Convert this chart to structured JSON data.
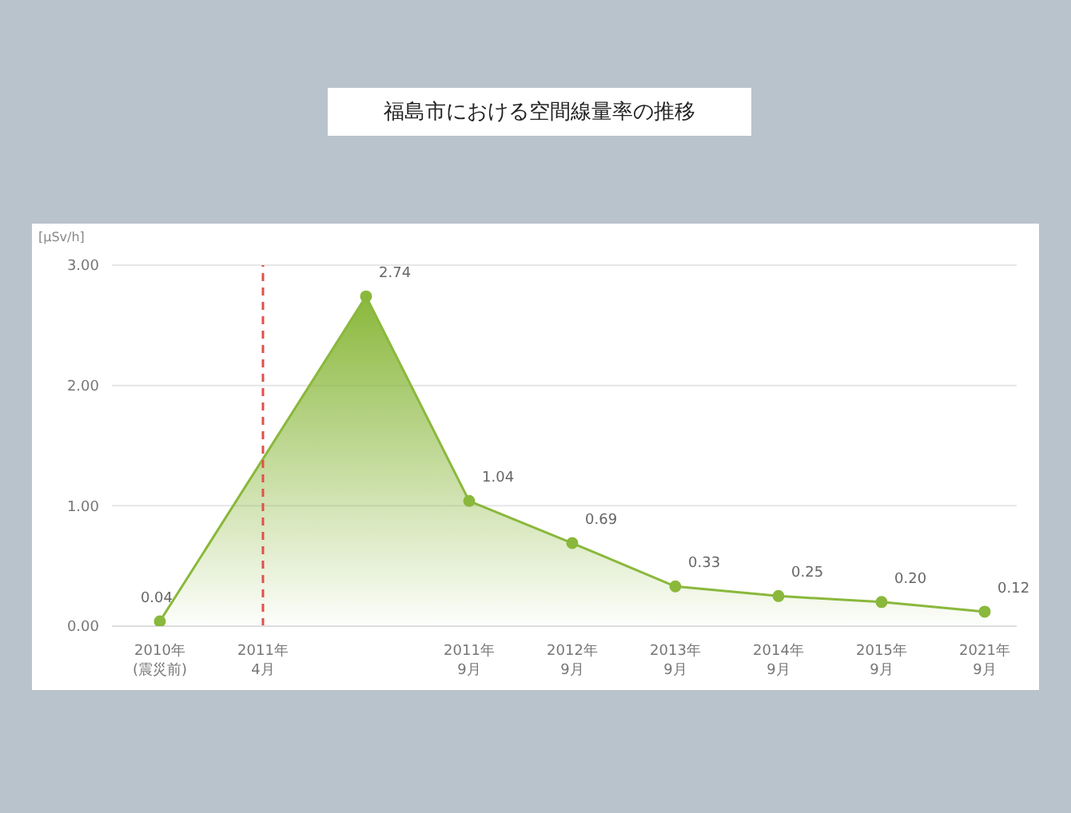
{
  "chart_data": {
    "type": "area",
    "title": "福島市における空間線量率の推移",
    "ylabel": "[μSv/h]",
    "categories": [
      "2010年\n(震災前)",
      "2011年\n4月",
      null,
      "2011年\n9月",
      "2012年\n9月",
      "2013年\n9月",
      "2014年\n9月",
      "2015年\n9月",
      "2021年\n9月"
    ],
    "series": [
      {
        "color": "#8ab83c",
        "values": [
          0.04,
          null,
          2.74,
          1.04,
          0.69,
          0.33,
          0.25,
          0.2,
          0.12
        ],
        "value_labels": [
          "0.04",
          null,
          "2.74",
          "1.04",
          "0.69",
          "0.33",
          "0.25",
          "0.20",
          "0.12"
        ]
      }
    ],
    "ylim": [
      0,
      3
    ],
    "yticks": [
      {
        "value": 0,
        "label": "0.00"
      },
      {
        "value": 1,
        "label": "1.00"
      },
      {
        "value": 2,
        "label": "2.00"
      },
      {
        "value": 3,
        "label": "3.00"
      }
    ],
    "ref_lines": [
      {
        "axis": "x",
        "value": "2011年\n4月",
        "color": "#e0504a",
        "line_style": "dashed"
      }
    ],
    "grid": "y",
    "marker": "circle"
  }
}
